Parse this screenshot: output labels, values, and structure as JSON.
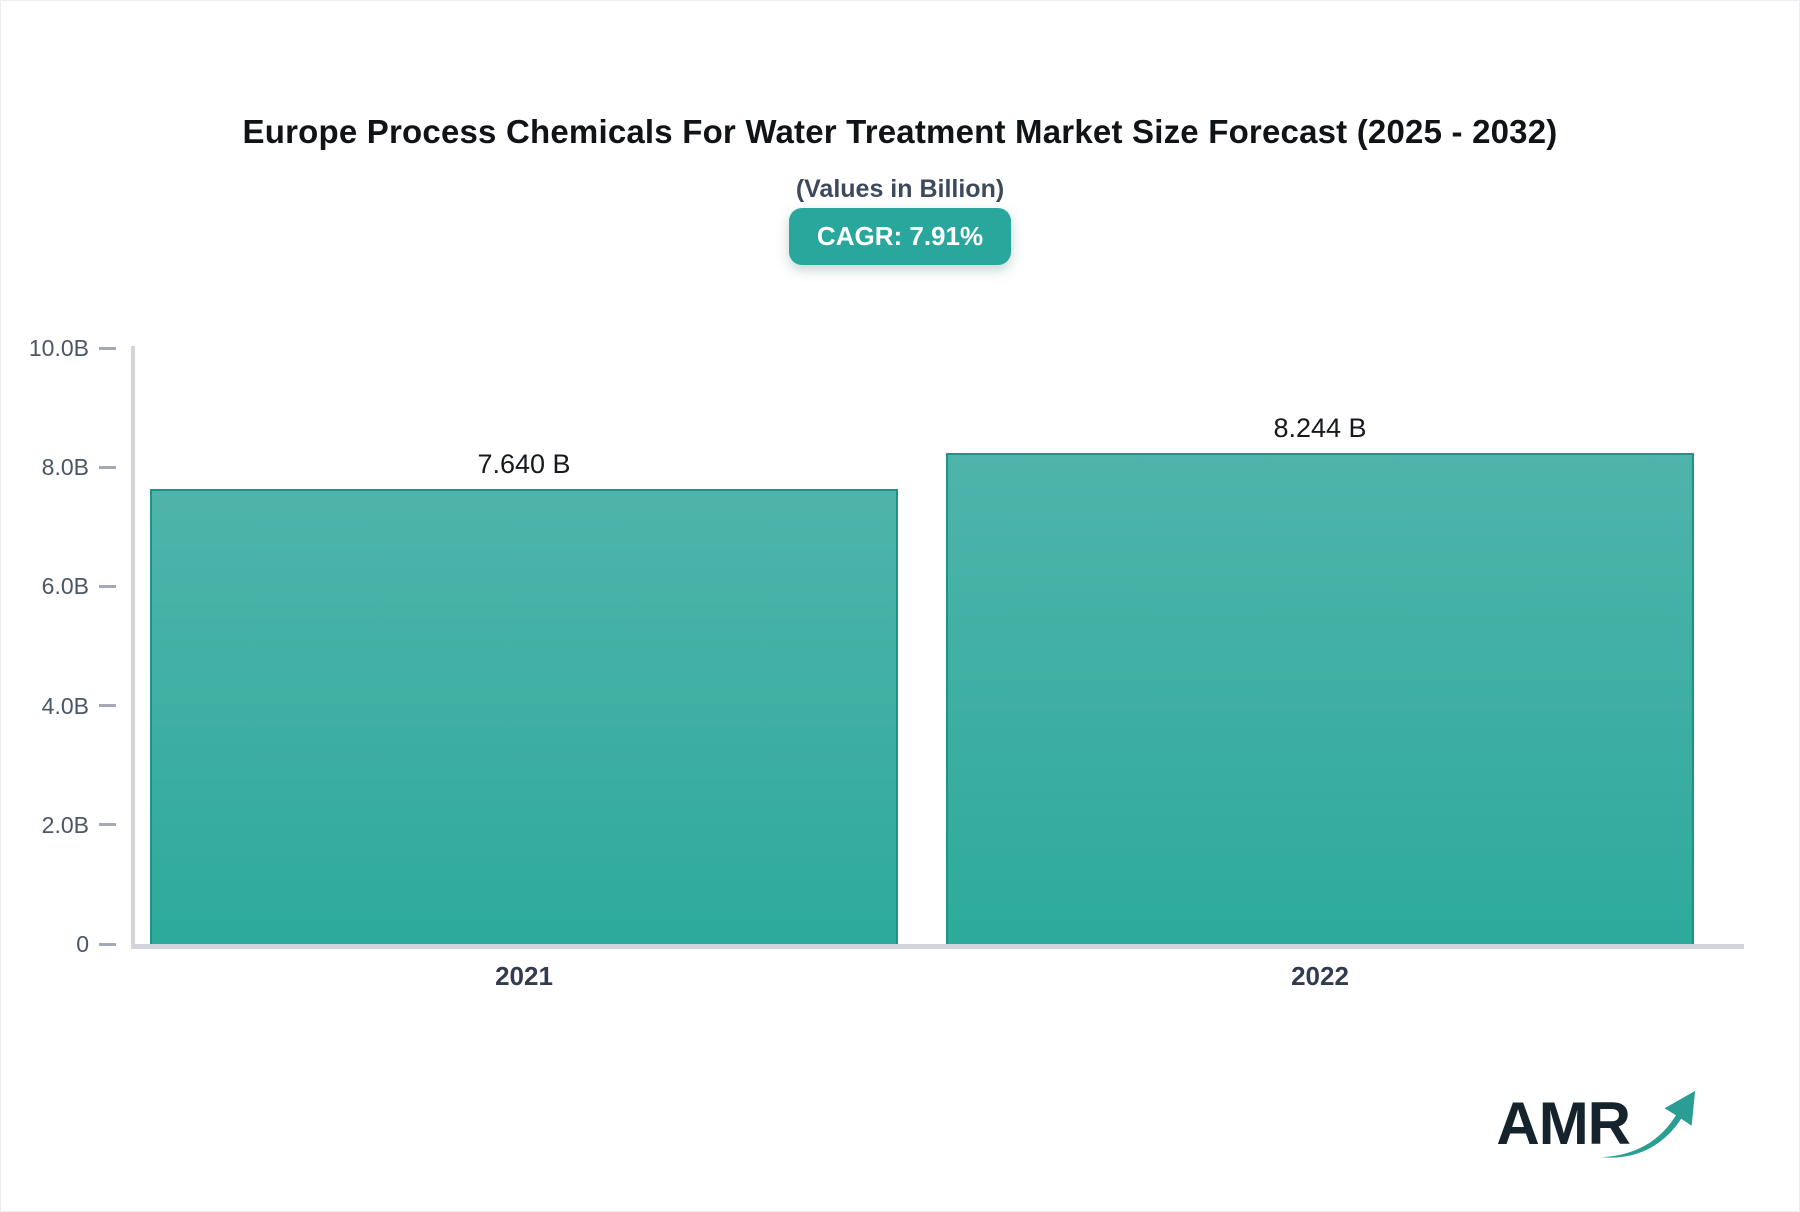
{
  "title": "Europe Process Chemicals For Water Treatment Market Size Forecast (2025 - 2032)",
  "subtitle": "(Values in Billion)",
  "cagr_badge": "CAGR: 7.91%",
  "logo_text": "AMR",
  "colors": {
    "bar_top": "#4fb4ab",
    "bar_bottom": "#2daa9a",
    "bar_border": "#1d9288",
    "badge_bg": "#2aa79c",
    "axis_line": "#d3d5db",
    "tick_dash": "#a3a9b5",
    "tick_label": "#4b5765",
    "category_label": "#323c4e",
    "subtitle_color": "#3d4a5c",
    "logo_text_color": "#15242c",
    "logo_arrow_color": "#2b9e94"
  },
  "chart_data": {
    "type": "bar",
    "title": "Europe Process Chemicals For Water Treatment Market Size Forecast (2025 - 2032)",
    "subtitle": "(Values in Billion)",
    "cagr_percent": 7.91,
    "categories": [
      "2021",
      "2022"
    ],
    "values": [
      7.64,
      8.244
    ],
    "value_labels": [
      "7.640 B",
      "8.244 B"
    ],
    "xlabel": "",
    "ylabel": "",
    "ylim": [
      0,
      10
    ],
    "yticks": [
      0,
      2,
      4,
      6,
      8,
      10
    ],
    "ytick_labels": [
      "0",
      "2.0B",
      "4.0B",
      "6.0B",
      "8.0B",
      "10.0B"
    ],
    "grid": false,
    "legend": false,
    "bar_color": "#3aab9f"
  }
}
